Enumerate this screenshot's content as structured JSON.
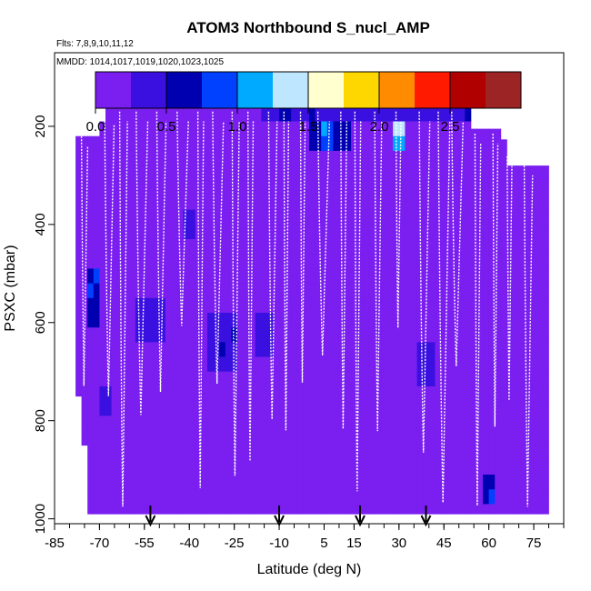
{
  "chart_data": {
    "type": "heatmap",
    "title": "ATOM3 Northbound S_nucl_AMP",
    "flights_label": "Flts: 7,8,9,10,11,12",
    "mmdd_label": "MMDD: 1014,1017,1019,1020,1023,1025",
    "xlabel": "Latitude (deg N)",
    "ylabel": "PSXC (mbar)",
    "xlim": [
      -85,
      85
    ],
    "ylim": [
      1010,
      50
    ],
    "x_ticks": [
      "-85",
      "-70",
      "-55",
      "-40",
      "-25",
      "-10",
      "5",
      "15",
      "30",
      "45",
      "60",
      "75"
    ],
    "x_tick_values": [
      -85,
      -70,
      -55,
      -40,
      -25,
      -10,
      5,
      15,
      30,
      45,
      60,
      75
    ],
    "y_ticks": [
      "200",
      "400",
      "600",
      "800",
      "1000"
    ],
    "y_tick_values": [
      200,
      400,
      600,
      800,
      1000
    ],
    "colorbar": {
      "range": [
        0,
        3
      ],
      "tick_labels": [
        "0.0",
        "0.5",
        "1.0",
        "1.5",
        "2.0",
        "2.5"
      ],
      "tick_values": [
        0,
        0.5,
        1.0,
        1.5,
        2.0,
        2.5
      ],
      "colors": [
        "#7a1ff0",
        "#3a10e0",
        "#0000b0",
        "#0040ff",
        "#00aaff",
        "#bfe6ff",
        "#ffffd0",
        "#ffd700",
        "#ff8c00",
        "#ff1a00",
        "#b00000",
        "#9c2424"
      ]
    },
    "base_value": 0.12,
    "top_boundary": [
      {
        "lat": -74,
        "top": 210
      },
      {
        "lat": -70,
        "top": 205
      },
      {
        "lat": -68,
        "top": 160
      },
      {
        "lat": 54,
        "top": 160
      },
      {
        "lat": 55,
        "top": 205
      },
      {
        "lat": 64,
        "top": 205
      },
      {
        "lat": 67,
        "top": 270
      },
      {
        "lat": 80,
        "top": 270
      }
    ],
    "bottom_boundary": [
      {
        "lat": -78,
        "bottom": 700
      },
      {
        "lat": -75,
        "bottom": 850
      },
      {
        "lat": -73,
        "bottom": 990
      },
      {
        "lat": 80,
        "bottom": 990
      }
    ],
    "enhanced_regions": [
      {
        "lat": [
          -74,
          -70
        ],
        "p": [
          500,
          620
        ],
        "value": 0.75
      },
      {
        "lat": [
          -69,
          -66
        ],
        "p": [
          740,
          790
        ],
        "value": 0.4
      },
      {
        "lat": [
          -58,
          -48
        ],
        "p": [
          560,
          650
        ],
        "value": 0.45
      },
      {
        "lat": [
          -42,
          -38
        ],
        "p": [
          380,
          440
        ],
        "value": 0.35
      },
      {
        "lat": [
          -33,
          -25
        ],
        "p": [
          580,
          700
        ],
        "value": 0.45
      },
      {
        "lat": [
          -18,
          -12
        ],
        "p": [
          590,
          680
        ],
        "value": 0.3
      },
      {
        "lat": [
          -15,
          55
        ],
        "p": [
          160,
          200
        ],
        "value": 0.45
      },
      {
        "lat": [
          0,
          14
        ],
        "p": [
          200,
          260
        ],
        "value": 0.6
      },
      {
        "lat": [
          4,
          8
        ],
        "p": [
          200,
          240
        ],
        "value": 0.95
      },
      {
        "lat": [
          28,
          31
        ],
        "p": [
          200,
          245
        ],
        "value": 1.15
      },
      {
        "lat": [
          36,
          42
        ],
        "p": [
          640,
          720
        ],
        "value": 0.35
      },
      {
        "lat": [
          59,
          61
        ],
        "p": [
          910,
          960
        ],
        "value": 0.7
      }
    ],
    "arrows_lat": [
      -53,
      -10,
      17,
      39
    ]
  }
}
